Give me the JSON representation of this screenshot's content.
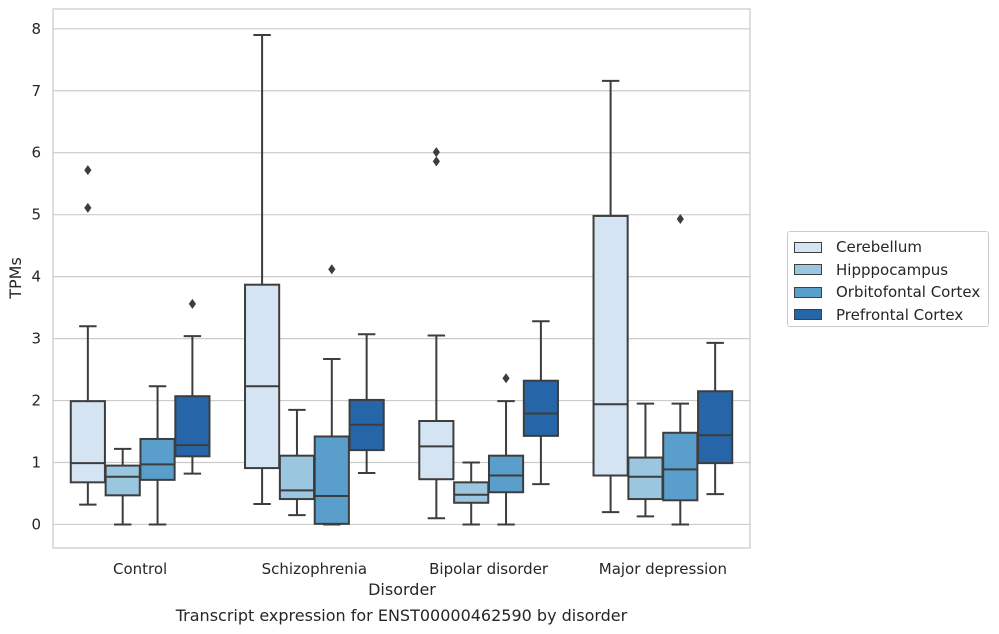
{
  "caption": "Transcript expression for ENST00000462590 by disorder",
  "chart_data": {
    "type": "box",
    "xlabel": "Disorder",
    "ylabel": "TPMs",
    "ylim": [
      -0.38,
      8.32
    ],
    "yticks": [
      0,
      1,
      2,
      3,
      4,
      5,
      6,
      7,
      8
    ],
    "grid": true,
    "legend_position": "right",
    "categories": [
      "Control",
      "Schizophrenia",
      "Bipolar disorder",
      "Major depression"
    ],
    "series": [
      {
        "name": "Cerebellum",
        "color": "#d5e4f2",
        "boxes": [
          {
            "whisker_low": 0.32,
            "q1": 0.68,
            "median": 0.99,
            "q3": 1.99,
            "whisker_high": 3.2,
            "outliers": [
              5.72,
              5.11
            ]
          },
          {
            "whisker_low": 0.33,
            "q1": 0.91,
            "median": 2.23,
            "q3": 3.87,
            "whisker_high": 7.9,
            "outliers": []
          },
          {
            "whisker_low": 0.1,
            "q1": 0.73,
            "median": 1.26,
            "q3": 1.67,
            "whisker_high": 3.05,
            "outliers": [
              6.01,
              5.86
            ]
          },
          {
            "whisker_low": 0.2,
            "q1": 0.79,
            "median": 1.94,
            "q3": 4.98,
            "whisker_high": 7.16,
            "outliers": []
          }
        ]
      },
      {
        "name": "Hipppocampus",
        "color": "#9ac6df",
        "boxes": [
          {
            "whisker_low": 0.0,
            "q1": 0.47,
            "median": 0.77,
            "q3": 0.95,
            "whisker_high": 1.22,
            "outliers": []
          },
          {
            "whisker_low": 0.15,
            "q1": 0.41,
            "median": 0.55,
            "q3": 1.11,
            "whisker_high": 1.85,
            "outliers": []
          },
          {
            "whisker_low": 0.0,
            "q1": 0.35,
            "median": 0.48,
            "q3": 0.68,
            "whisker_high": 1.0,
            "outliers": []
          },
          {
            "whisker_low": 0.13,
            "q1": 0.41,
            "median": 0.77,
            "q3": 1.08,
            "whisker_high": 1.95,
            "outliers": []
          }
        ]
      },
      {
        "name": "Orbitofontal Cortex",
        "color": "#5a9fcb",
        "boxes": [
          {
            "whisker_low": 0.0,
            "q1": 0.72,
            "median": 0.97,
            "q3": 1.38,
            "whisker_high": 2.23,
            "outliers": []
          },
          {
            "whisker_low": 0.0,
            "q1": 0.01,
            "median": 0.46,
            "q3": 1.42,
            "whisker_high": 2.67,
            "outliers": [
              4.12
            ]
          },
          {
            "whisker_low": 0.0,
            "q1": 0.52,
            "median": 0.79,
            "q3": 1.11,
            "whisker_high": 1.99,
            "outliers": [
              2.36
            ]
          },
          {
            "whisker_low": 0.0,
            "q1": 0.39,
            "median": 0.89,
            "q3": 1.48,
            "whisker_high": 1.95,
            "outliers": [
              4.93
            ]
          }
        ]
      },
      {
        "name": "Prefrontal Cortex",
        "color": "#2666a8",
        "boxes": [
          {
            "whisker_low": 0.82,
            "q1": 1.1,
            "median": 1.28,
            "q3": 2.07,
            "whisker_high": 3.04,
            "outliers": [
              3.56
            ]
          },
          {
            "whisker_low": 0.83,
            "q1": 1.2,
            "median": 1.61,
            "q3": 2.01,
            "whisker_high": 3.07,
            "outliers": []
          },
          {
            "whisker_low": 0.65,
            "q1": 1.43,
            "median": 1.79,
            "q3": 2.32,
            "whisker_high": 3.28,
            "outliers": []
          },
          {
            "whisker_low": 0.49,
            "q1": 0.99,
            "median": 1.44,
            "q3": 2.15,
            "whisker_high": 2.93,
            "outliers": []
          }
        ]
      }
    ]
  }
}
